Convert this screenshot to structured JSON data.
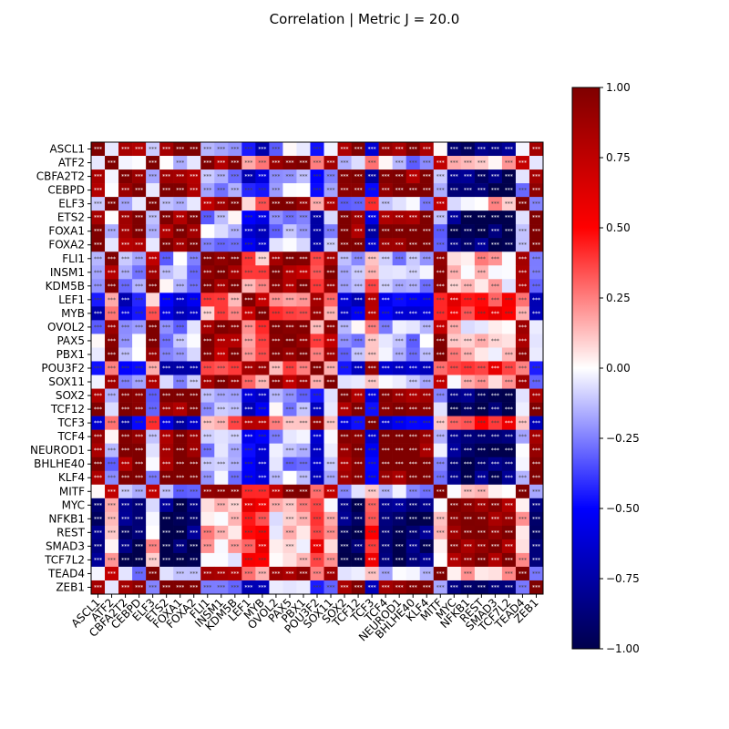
{
  "chart_data": {
    "type": "heatmap",
    "title": "Correlation | Metric J = 20.0",
    "labels": [
      "ASCL1",
      "ATF2",
      "CBFA2T2",
      "CEBPD",
      "ELF3",
      "ETS2",
      "FOXA1",
      "FOXA2",
      "FLI1",
      "INSM1",
      "KDM5B",
      "LEF1",
      "MYB",
      "OVOL2",
      "PAX5",
      "PBX1",
      "POU3F2",
      "SOX11",
      "SOX2",
      "TCF12",
      "TCF3",
      "TCF4",
      "NEUROD1",
      "BHLHE40",
      "KLF4",
      "MITF",
      "MYC",
      "NFKB1",
      "REST",
      "SMAD3",
      "TCF7L2",
      "TEAD4",
      "ZEB1"
    ],
    "groups": {
      "A": [
        "ASCL1",
        "CBFA2T2",
        "CEBPD",
        "ETS2",
        "FOXA1",
        "FOXA2",
        "SOX2",
        "TCF12",
        "TCF4",
        "NEUROD1",
        "BHLHE40",
        "KLF4",
        "ZEB1"
      ],
      "B": [
        "MYC",
        "NFKB1",
        "REST",
        "SMAD3",
        "TCF7L2"
      ],
      "C": [
        "ATF2",
        "ELF3",
        "FLI1",
        "INSM1",
        "KDM5B",
        "OVOL2",
        "PAX5",
        "PBX1",
        "SOX11",
        "MITF",
        "TEAD4"
      ],
      "D": [
        "LEF1",
        "MYB",
        "POU3F2",
        "TCF3"
      ]
    },
    "group_corr": {
      "AA": 0.95,
      "AB": -0.95,
      "AC": -0.15,
      "AD": -0.6,
      "BB": 0.95,
      "BC": 0.1,
      "BD": 0.45,
      "CC": 0.9,
      "CD": 0.25,
      "DD": 0.85
    },
    "significance_marker": "***",
    "colorbar": {
      "colormap": "seismic",
      "min": -1.0,
      "max": 1.0,
      "ticks": [
        "1.00",
        "0.75",
        "0.50",
        "0.25",
        "0.00",
        "−0.25",
        "−0.50",
        "−0.75",
        "−1.00"
      ]
    }
  }
}
